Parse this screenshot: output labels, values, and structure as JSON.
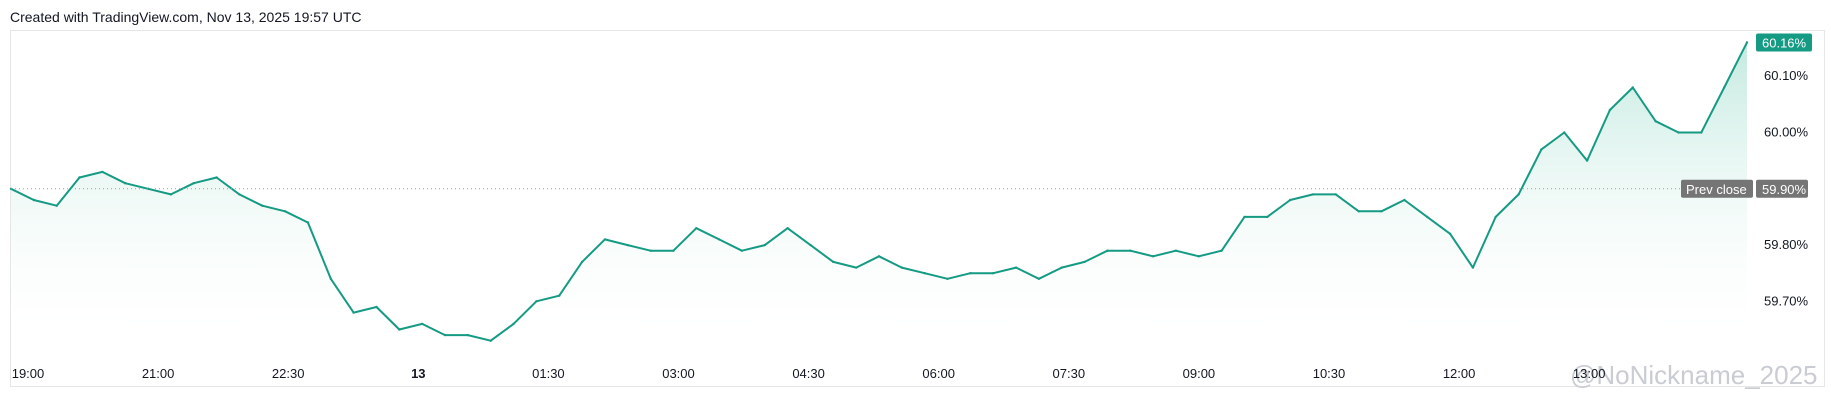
{
  "caption": "Created with TradingView.com, Nov 13, 2025 19:57 UTC",
  "watermark": "@NoNickname_2025",
  "colors": {
    "line": "#159a83",
    "area_top": "#b9e6da",
    "area_bottom": "#ffffff",
    "last_badge": "#159a83",
    "prev_badge": "#757575",
    "prev_line": "#9aa0a6"
  },
  "chart_data": {
    "type": "area",
    "title": "",
    "xlabel": "",
    "ylabel": "",
    "x_ticks": [
      "19:00",
      "21:00",
      "22:30",
      "13",
      "01:30",
      "03:00",
      "04:30",
      "06:00",
      "07:30",
      "09:00",
      "10:30",
      "12:00",
      "13:00"
    ],
    "x_tick_bold": "13",
    "y_ticks": [
      "60.10%",
      "60.00%",
      "59.80%",
      "59.70%"
    ],
    "ylim": [
      59.61,
      60.175
    ],
    "prev_close": {
      "label": "Prev close",
      "value": 59.9,
      "value_label": "59.90%"
    },
    "last_value": {
      "value": 60.16,
      "label": "60.16%"
    },
    "series": [
      {
        "x": [
          "19:00",
          "19:15",
          "19:30",
          "19:45",
          "20:00",
          "20:15",
          "20:30",
          "20:45",
          "21:00",
          "21:15",
          "21:30",
          "21:45",
          "22:00",
          "22:15",
          "22:30",
          "22:45",
          "23:00",
          "23:15",
          "23:30",
          "23:45",
          "00:00",
          "00:15",
          "00:30",
          "00:45",
          "01:00",
          "01:15",
          "01:30",
          "01:45",
          "02:00",
          "02:15",
          "02:30",
          "02:45",
          "03:00",
          "03:15",
          "03:30",
          "03:45",
          "04:00",
          "04:15",
          "04:30",
          "04:45",
          "05:00",
          "05:15",
          "05:30",
          "05:45",
          "06:00",
          "06:15",
          "06:30",
          "06:45",
          "07:00",
          "07:15",
          "07:30",
          "07:45",
          "08:00",
          "08:15",
          "08:30",
          "08:45",
          "09:00",
          "09:15",
          "09:30",
          "09:45",
          "10:00",
          "10:15",
          "10:30",
          "10:45",
          "11:00",
          "11:15",
          "11:30",
          "11:45",
          "12:00",
          "12:15",
          "12:30",
          "12:45",
          "13:00",
          "13:15",
          "13:30",
          "13:45",
          "14:00"
        ],
        "values": [
          59.9,
          59.88,
          59.87,
          59.92,
          59.93,
          59.91,
          59.9,
          59.89,
          59.91,
          59.92,
          59.89,
          59.87,
          59.86,
          59.84,
          59.74,
          59.68,
          59.69,
          59.65,
          59.66,
          59.64,
          59.64,
          59.63,
          59.66,
          59.7,
          59.71,
          59.77,
          59.81,
          59.8,
          59.79,
          59.79,
          59.83,
          59.81,
          59.79,
          59.8,
          59.83,
          59.8,
          59.77,
          59.76,
          59.78,
          59.76,
          59.75,
          59.74,
          59.75,
          59.75,
          59.76,
          59.74,
          59.76,
          59.77,
          59.79,
          59.79,
          59.78,
          59.79,
          59.78,
          59.79,
          59.85,
          59.85,
          59.88,
          59.89,
          59.89,
          59.86,
          59.86,
          59.88,
          59.85,
          59.82,
          59.76,
          59.85,
          59.89,
          59.97,
          60.0,
          59.95,
          60.04,
          60.08,
          60.02,
          60.0,
          60.0,
          60.08,
          60.16
        ]
      }
    ],
    "grid": false,
    "legend": "none"
  }
}
